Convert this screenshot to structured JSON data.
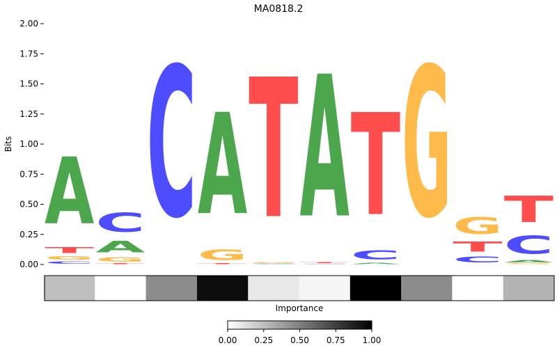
{
  "chart_data": {
    "type": "sequence-logo",
    "title": "MA0818.2",
    "ylabel": "Bits",
    "ylim": [
      0,
      2.0
    ],
    "yticks": [
      "0.00",
      "0.25",
      "0.50",
      "0.75",
      "1.00",
      "1.25",
      "1.50",
      "1.75",
      "2.00"
    ],
    "colors": {
      "A": "#4ca64c",
      "C": "#4d4dff",
      "G": "#ffbb49",
      "T": "#ff4d4d"
    },
    "positions": [
      {
        "pos": 1,
        "letters": [
          [
            "C",
            0.03
          ],
          [
            "G",
            0.05
          ],
          [
            "T",
            0.08
          ],
          [
            "A",
            0.89
          ]
        ]
      },
      {
        "pos": 2,
        "letters": [
          [
            "T",
            0.01
          ],
          [
            "G",
            0.06
          ],
          [
            "A",
            0.15
          ],
          [
            "C",
            0.25
          ]
        ]
      },
      {
        "pos": 3,
        "letters": [
          [
            "C",
            2.0
          ]
        ]
      },
      {
        "pos": 4,
        "letters": [
          [
            "T",
            0.01
          ],
          [
            "G",
            0.14
          ],
          [
            "A",
            1.35
          ]
        ]
      },
      {
        "pos": 5,
        "letters": [
          [
            "C",
            0.005
          ],
          [
            "A",
            0.005
          ],
          [
            "G",
            0.01
          ],
          [
            "T",
            1.86
          ]
        ]
      },
      {
        "pos": 6,
        "letters": [
          [
            "C",
            0.004
          ],
          [
            "G",
            0.005
          ],
          [
            "T",
            0.011
          ],
          [
            "A",
            1.89
          ]
        ]
      },
      {
        "pos": 7,
        "letters": [
          [
            "A",
            0.02
          ],
          [
            "C",
            0.12
          ],
          [
            "T",
            1.36
          ]
        ]
      },
      {
        "pos": 8,
        "letters": [
          [
            "G",
            2.0
          ]
        ]
      },
      {
        "pos": 9,
        "letters": [
          [
            "C",
            0.08
          ],
          [
            "T",
            0.13
          ],
          [
            "G",
            0.22
          ]
        ]
      },
      {
        "pos": 10,
        "letters": [
          [
            "G",
            0.01
          ],
          [
            "A",
            0.03
          ],
          [
            "C",
            0.24
          ],
          [
            "T",
            0.35
          ]
        ]
      }
    ],
    "importance": {
      "label": "Importance",
      "values": [
        0.25,
        0.0,
        0.45,
        0.95,
        0.09,
        0.04,
        1.0,
        0.45,
        0.0,
        0.3
      ]
    },
    "colorbar": {
      "ticks": [
        "0.00",
        "0.25",
        "0.50",
        "0.75",
        "1.00"
      ],
      "range": [
        0,
        1
      ]
    }
  }
}
